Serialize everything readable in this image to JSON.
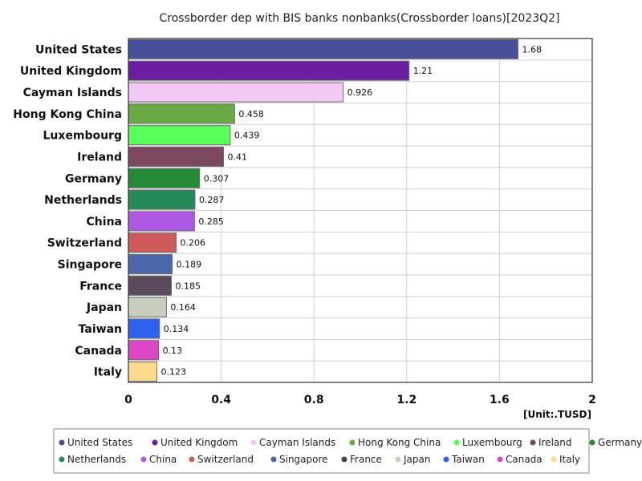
{
  "chart_data": {
    "type": "bar",
    "orientation": "horizontal",
    "title": "Crossborder dep with BIS banks nonbanks(Crossborder loans)[2023Q2]",
    "unit": "[Unit:.TUSD]",
    "xlim": [
      0,
      2
    ],
    "ticks": [
      0,
      0.4,
      0.8,
      1.2,
      1.6,
      2
    ],
    "tick_labels": [
      "0",
      "0.4",
      "0.8",
      "1.2",
      "1.6",
      "2"
    ],
    "grid": true,
    "legend_position": "bottom",
    "categories": [
      "United States",
      "United Kingdom",
      "Cayman Islands",
      "Hong Kong China",
      "Luxembourg",
      "Ireland",
      "Germany",
      "Netherlands",
      "China",
      "Switzerland",
      "Singapore",
      "France",
      "Japan",
      "Taiwan",
      "Canada",
      "Italy"
    ],
    "values": [
      1.68,
      1.21,
      0.926,
      0.458,
      0.439,
      0.41,
      0.307,
      0.287,
      0.285,
      0.206,
      0.189,
      0.185,
      0.164,
      0.134,
      0.13,
      0.123
    ],
    "value_labels": [
      "1.68",
      "1.21",
      "0.926",
      "0.458",
      "0.439",
      "0.41",
      "0.307",
      "0.287",
      "0.285",
      "0.206",
      "0.189",
      "0.185",
      "0.164",
      "0.134",
      "0.13",
      "0.123"
    ],
    "colors": [
      "#48509a",
      "#6a1fa0",
      "#f2c8f4",
      "#6aaa44",
      "#59ff59",
      "#7d4862",
      "#258a38",
      "#258a5a",
      "#ae5ae4",
      "#cc5a5a",
      "#4c68a8",
      "#5a4a5c",
      "#c6cebe",
      "#2c62ee",
      "#dc46c2",
      "#fcdc8c"
    ],
    "legend_markers": [
      "#48509a",
      "#6a1fa0",
      "#f2c8f4",
      "#6aaa44",
      "#59ff59",
      "#7d4862",
      "#258a38",
      "#258a5a",
      "#ae5ae4",
      "#cc5a5a",
      "#4c68a8",
      "#444444",
      "#c6cebe",
      "#2c62ee",
      "#dc46c2",
      "#fcdc8c"
    ]
  }
}
